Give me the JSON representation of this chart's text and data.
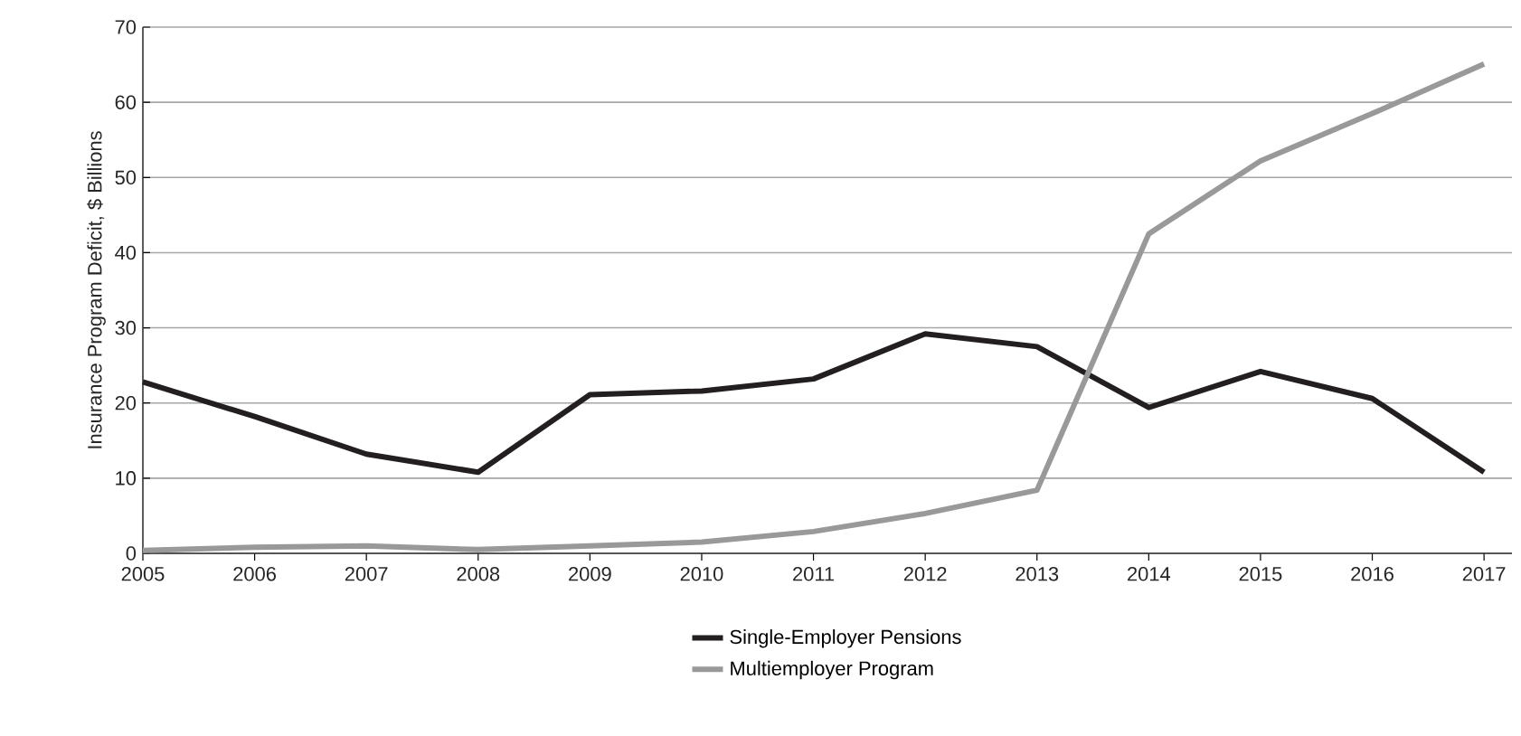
{
  "chart_data": {
    "type": "line",
    "ylabel": "Insurance Program Deficit, $ Billions",
    "categories": [
      "2005",
      "2006",
      "2007",
      "2008",
      "2009",
      "2010",
      "2011",
      "2012",
      "2013",
      "2014",
      "2015",
      "2016",
      "2017"
    ],
    "series": [
      {
        "name": "Single-Employer Pensions",
        "color": "#231f20",
        "values": [
          22.8,
          18.2,
          13.2,
          10.8,
          21.1,
          21.6,
          23.2,
          29.2,
          27.5,
          19.4,
          24.2,
          20.6,
          10.8
        ]
      },
      {
        "name": "Multiemployer Program",
        "color": "#999999",
        "values": [
          0.4,
          0.8,
          1.0,
          0.5,
          1.0,
          1.5,
          2.9,
          5.3,
          8.4,
          42.5,
          52.2,
          58.5,
          65.1
        ]
      }
    ],
    "ylim": [
      0,
      70
    ],
    "yticks": [
      0,
      10,
      20,
      30,
      40,
      50,
      60,
      70
    ],
    "grid": "y",
    "legend": "bottom",
    "marker": "none",
    "line_style": "solid"
  }
}
